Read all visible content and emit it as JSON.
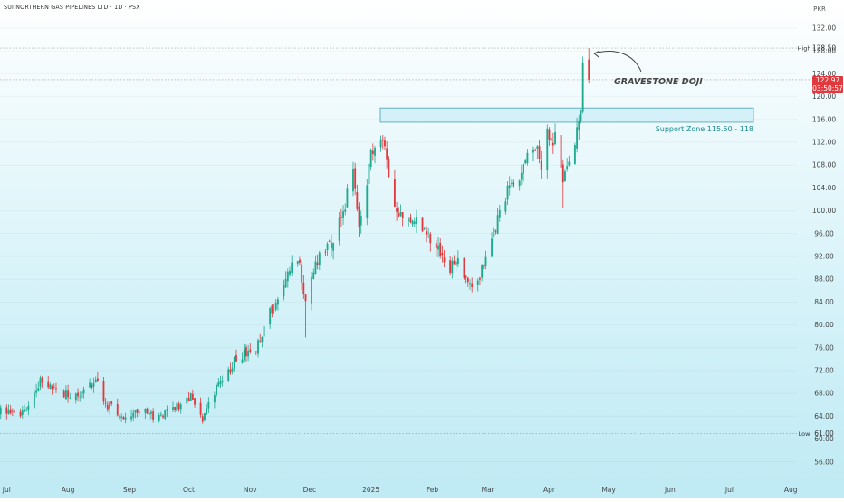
{
  "header": {
    "title": "SUI NORTHERN GAS PIPELINES LTD · 1D · PSX",
    "currency": "PKR"
  },
  "colors": {
    "up": "#1fa98f",
    "down": "#e03a3e",
    "zone_fill": "#cfeff8",
    "zone_stroke": "#4a9fb3",
    "zone_text": "#1b8a8f",
    "annotation": "#444444"
  },
  "price_tag": {
    "price": "122.97",
    "countdown": "03:50:57"
  },
  "markers": {
    "high": {
      "label": "High",
      "value": "128.50"
    },
    "low": {
      "label": "Low",
      "value": "61.00"
    }
  },
  "annotations": {
    "gravestone": "GRAVESTONE DOJI",
    "support_zone": "Support Zone 115.50 - 118"
  },
  "chart_data": {
    "type": "candlestick",
    "title": "SUI NORTHERN GAS PIPELINES LTD · 1D · PSX",
    "y_axis": {
      "ylim": [
        55,
        133
      ],
      "ticks": [
        "132.00",
        "128.00",
        "124.00",
        "120.00",
        "116.00",
        "112.00",
        "108.00",
        "104.00",
        "100.00",
        "96.00",
        "92.00",
        "88.00",
        "84.00",
        "80.00",
        "76.00",
        "72.00",
        "68.00",
        "64.00",
        "60.00",
        "56.00"
      ],
      "unit": "PKR"
    },
    "x_axis": {
      "tick_labels": [
        "Jul",
        "Aug",
        "Sep",
        "Oct",
        "Nov",
        "Dec",
        "2025",
        "Feb",
        "Mar",
        "Apr",
        "May",
        "Jun",
        "Jul",
        "Aug"
      ]
    },
    "support_zone": {
      "low": 115.5,
      "high": 118
    },
    "high": 128.5,
    "low": 61.0,
    "last_price": 122.97,
    "anchors": [
      [
        "2024-06-24",
        65.8
      ],
      [
        "2024-07-08",
        63.9
      ],
      [
        "2024-07-18",
        70.1
      ],
      [
        "2024-07-25",
        69.0
      ],
      [
        "2024-08-05",
        67.2
      ],
      [
        "2024-08-15",
        70.2
      ],
      [
        "2024-08-20",
        66.3
      ],
      [
        "2024-08-28",
        64.0
      ],
      [
        "2024-09-05",
        64.9
      ],
      [
        "2024-09-16",
        64.0
      ],
      [
        "2024-09-25",
        65.5
      ],
      [
        "2024-10-03",
        67.5
      ],
      [
        "2024-10-08",
        63.5
      ],
      [
        "2024-10-16",
        69.5
      ],
      [
        "2024-10-25",
        74.0
      ],
      [
        "2024-11-04",
        76.0
      ],
      [
        "2024-11-14",
        84.5
      ],
      [
        "2024-11-19",
        88.0
      ],
      [
        "2024-11-25",
        92.0
      ],
      [
        "2024-11-29",
        84.5
      ],
      [
        "2024-12-05",
        91.5
      ],
      [
        "2024-12-12",
        94.0
      ],
      [
        "2024-12-18",
        100.0
      ],
      [
        "2024-12-23",
        107.0
      ],
      [
        "2024-12-26",
        98.0
      ],
      [
        "2025-01-01",
        109.5
      ],
      [
        "2025-01-06",
        113.0
      ],
      [
        "2025-01-08",
        110.0
      ],
      [
        "2025-01-13",
        101.0
      ],
      [
        "2025-01-17",
        98.0
      ],
      [
        "2025-01-24",
        98.5
      ],
      [
        "2025-01-29",
        95.5
      ],
      [
        "2025-02-05",
        93.0
      ],
      [
        "2025-02-10",
        90.0
      ],
      [
        "2025-02-14",
        91.0
      ],
      [
        "2025-02-19",
        87.0
      ],
      [
        "2025-02-25",
        88.5
      ],
      [
        "2025-03-03",
        95.0
      ],
      [
        "2025-03-07",
        100.0
      ],
      [
        "2025-03-12",
        104.0
      ],
      [
        "2025-03-18",
        107.0
      ],
      [
        "2025-03-24",
        112.0
      ],
      [
        "2025-03-28",
        108.0
      ],
      [
        "2025-03-31",
        115.0
      ],
      [
        "2025-04-02",
        111.0
      ],
      [
        "2025-04-04",
        114.0
      ],
      [
        "2025-04-08",
        105.0
      ],
      [
        "2025-04-10",
        109.0
      ],
      [
        "2025-04-14",
        112.0
      ],
      [
        "2025-04-16",
        114.5
      ],
      [
        "2025-04-17",
        117.5
      ],
      [
        "2025-04-18",
        123.5
      ],
      [
        "2025-04-21",
        122.97
      ]
    ]
  }
}
